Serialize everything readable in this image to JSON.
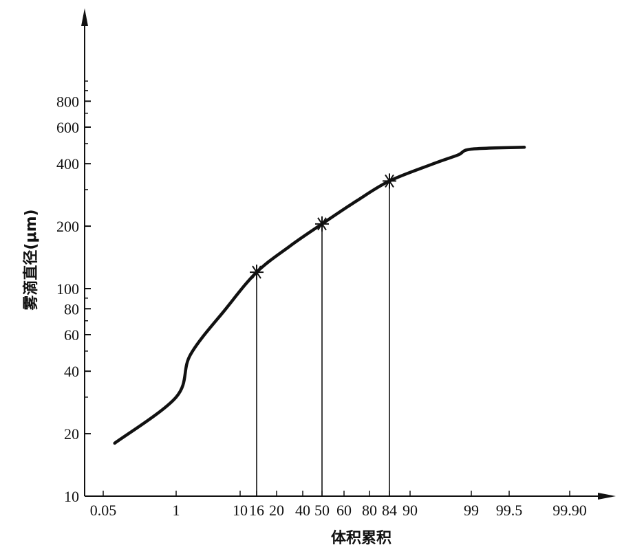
{
  "chart_data": {
    "type": "line",
    "title": "",
    "xlabel": "体积累积",
    "ylabel": "雾滴直径(μm)",
    "x_scale": "probability",
    "y_scale": "log",
    "x_ticks": [
      {
        "label": "0.05",
        "value": 0.05
      },
      {
        "label": "1",
        "value": 1
      },
      {
        "label": "10",
        "value": 10
      },
      {
        "label": "16",
        "value": 16
      },
      {
        "label": "20",
        "value": 20
      },
      {
        "label": "40",
        "value": 40
      },
      {
        "label": "50",
        "value": 50
      },
      {
        "label": "60",
        "value": 60
      },
      {
        "label": "80",
        "value": 80
      },
      {
        "label": "84",
        "value": 84
      },
      {
        "label": "90",
        "value": 90
      },
      {
        "label": "99",
        "value": 99
      },
      {
        "label": "99.5",
        "value": 99.5
      },
      {
        "label": "99.90",
        "value": 99.9
      }
    ],
    "y_ticks": [
      {
        "label": "10",
        "value": 10
      },
      {
        "label": "20",
        "value": 20
      },
      {
        "label": "40",
        "value": 40
      },
      {
        "label": "60",
        "value": 60
      },
      {
        "label": "80",
        "value": 80
      },
      {
        "label": "100",
        "value": 100
      },
      {
        "label": "200",
        "value": 200
      },
      {
        "label": "400",
        "value": 400
      },
      {
        "label": "600",
        "value": 600
      },
      {
        "label": "800",
        "value": 800
      }
    ],
    "ylim": [
      10,
      1000
    ],
    "grid": false,
    "series": [
      {
        "x": [
          0.2,
          1,
          3,
          8,
          16,
          30,
          50,
          70,
          84,
          93,
          97,
          99,
          99.6
        ],
        "y": [
          18,
          30,
          48,
          80,
          120,
          160,
          205,
          265,
          330,
          395,
          440,
          470,
          480
        ]
      }
    ],
    "markers": [
      {
        "x": 16,
        "y": 120
      },
      {
        "x": 50,
        "y": 205
      },
      {
        "x": 84,
        "y": 330
      }
    ]
  }
}
